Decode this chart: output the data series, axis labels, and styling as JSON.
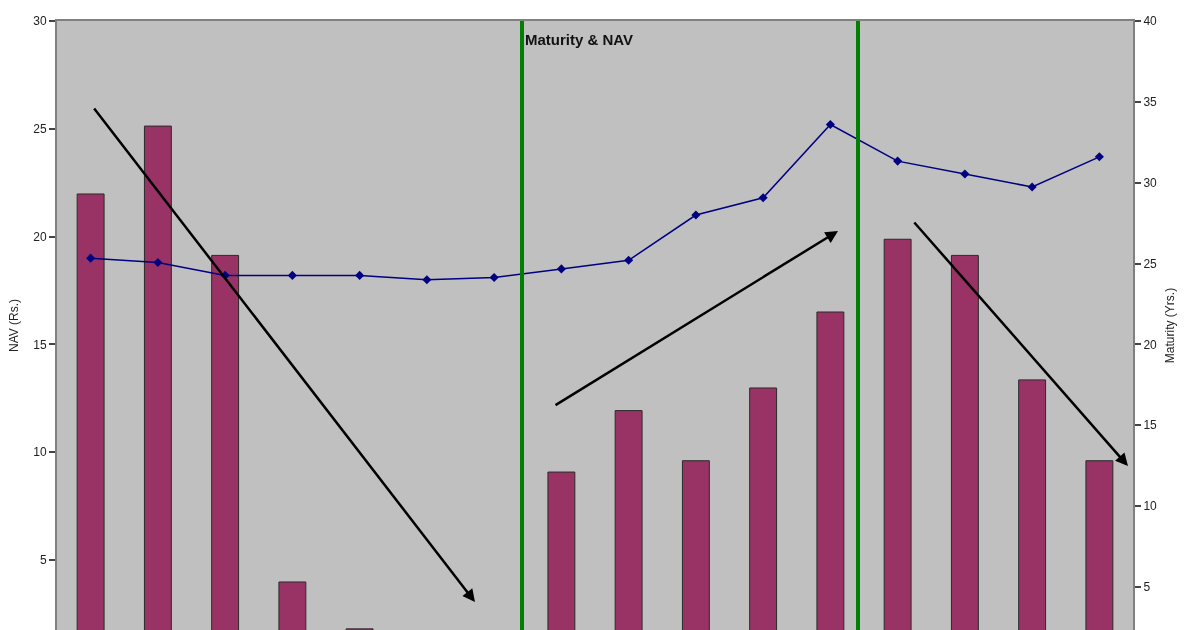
{
  "chart_data": {
    "type": "bar",
    "title": "Maturity & NAV",
    "ylabel": "NAV (Rs.)",
    "y2label": "Maturity (Yrs.)",
    "categories": [
      null,
      null,
      null,
      null,
      null,
      null,
      null,
      null,
      null,
      null,
      null,
      null,
      null,
      null,
      null,
      null
    ],
    "series": [
      {
        "axis": "y2",
        "color": "#993366",
        "values": [
          29.3,
          33.5,
          25.5,
          5.3,
          2.4,
          null,
          null,
          12.1,
          15.9,
          12.8,
          17.3,
          22.0,
          26.5,
          25.5,
          17.8,
          12.8
        ]
      },
      {
        "type": "line",
        "color": "#000080",
        "values": [
          19.0,
          18.8,
          18.2,
          18.2,
          18.2,
          18.0,
          18.1,
          18.5,
          18.9,
          21.0,
          21.8,
          25.2,
          23.5,
          22.9,
          22.3,
          23.7
        ]
      }
    ],
    "ylim": [
      1.75,
      30
    ],
    "yticks": [
      5,
      10,
      15,
      20,
      25,
      30
    ],
    "y2lim": [
      2.33,
      40
    ],
    "y2ticks": [
      5,
      10,
      15,
      20,
      25,
      30,
      35,
      40
    ],
    "marker": "diamond",
    "tick_labels": "y",
    "grid": false
  }
}
